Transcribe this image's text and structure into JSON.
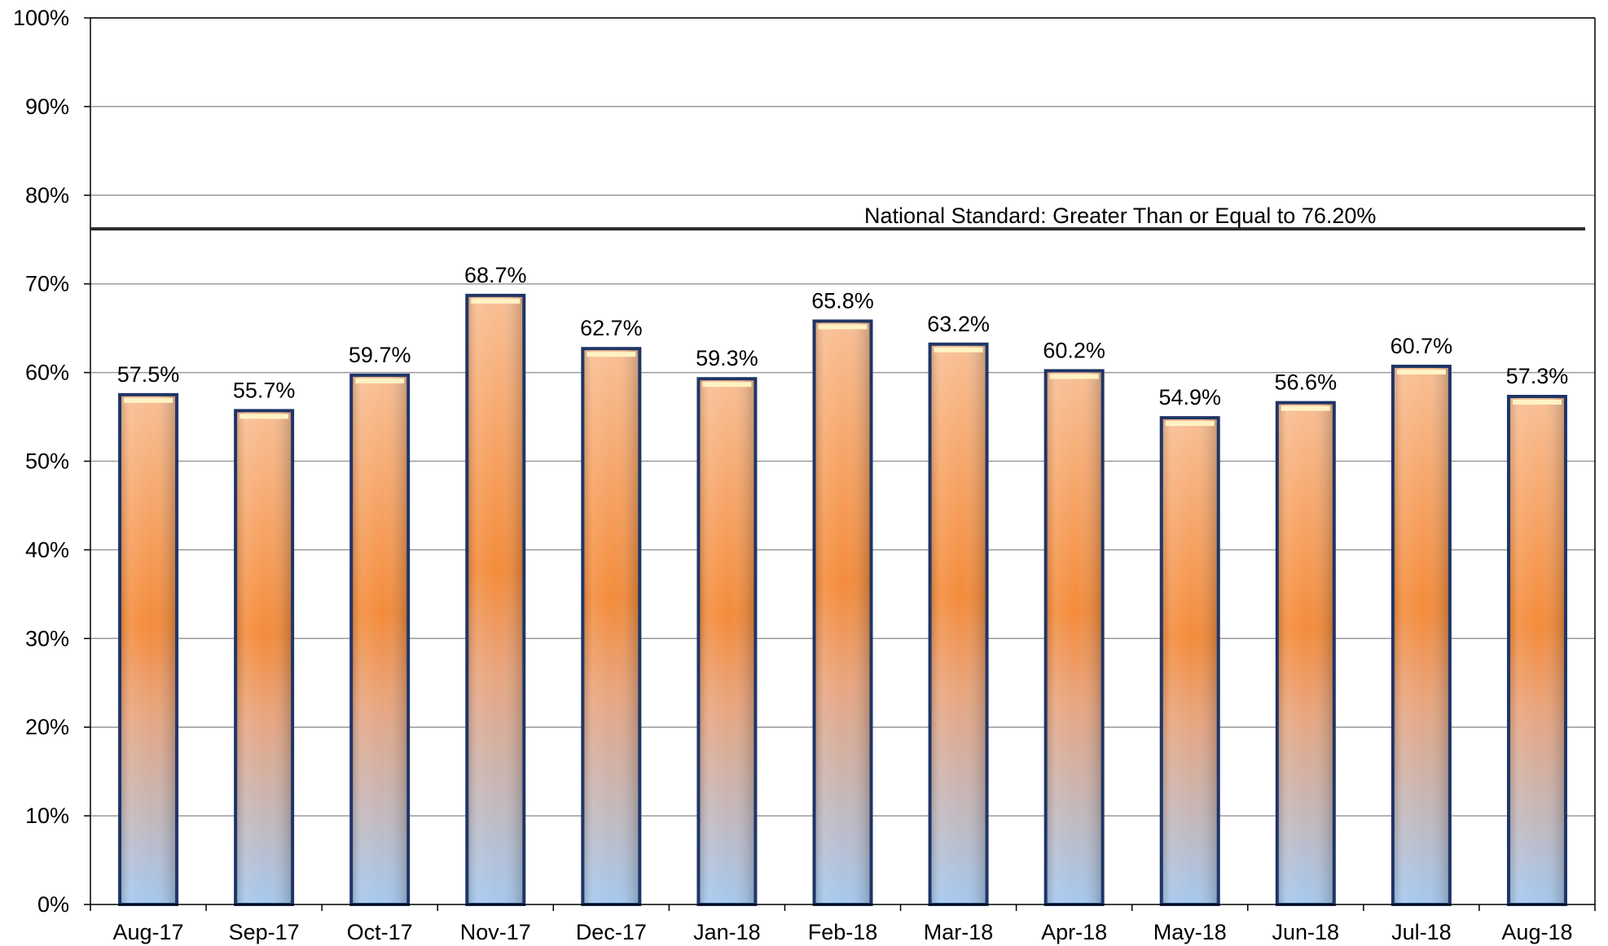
{
  "chart_data": {
    "type": "bar",
    "title": "",
    "xlabel": "",
    "ylabel": "",
    "categories": [
      "Aug-17",
      "Sep-17",
      "Oct-17",
      "Nov-17",
      "Dec-17",
      "Jan-18",
      "Feb-18",
      "Mar-18",
      "Apr-18",
      "May-18",
      "Jun-18",
      "Jul-18",
      "Aug-18"
    ],
    "values": [
      57.5,
      55.7,
      59.7,
      68.7,
      62.7,
      59.3,
      65.8,
      63.2,
      60.2,
      54.9,
      56.6,
      60.7,
      57.3
    ],
    "value_labels": [
      "57.5%",
      "55.7%",
      "59.7%",
      "68.7%",
      "62.7%",
      "59.3%",
      "65.8%",
      "63.2%",
      "60.2%",
      "54.9%",
      "56.6%",
      "60.7%",
      "57.3%"
    ],
    "ylim": [
      0,
      100
    ],
    "y_ticks": [
      0,
      10,
      20,
      30,
      40,
      50,
      60,
      70,
      80,
      90,
      100
    ],
    "y_tick_labels": [
      "0%",
      "10%",
      "20%",
      "30%",
      "40%",
      "50%",
      "60%",
      "70%",
      "80%",
      "90%",
      "100%"
    ],
    "grid": true,
    "legend": "none",
    "reference_line": {
      "value": 76.2,
      "label": "National Standard: Greater Than or Equal to 76.20%"
    },
    "colors": {
      "bar_top": "#f9bf95",
      "bar_middle": "#f48b3a",
      "bar_bottom": "#a4c8ef",
      "bar_border": "#1f3566",
      "bar_cap": "#fff3c4",
      "gridline": "#9a9a9a",
      "axis": "#000000",
      "reference_line": "#2b2b2b"
    }
  }
}
